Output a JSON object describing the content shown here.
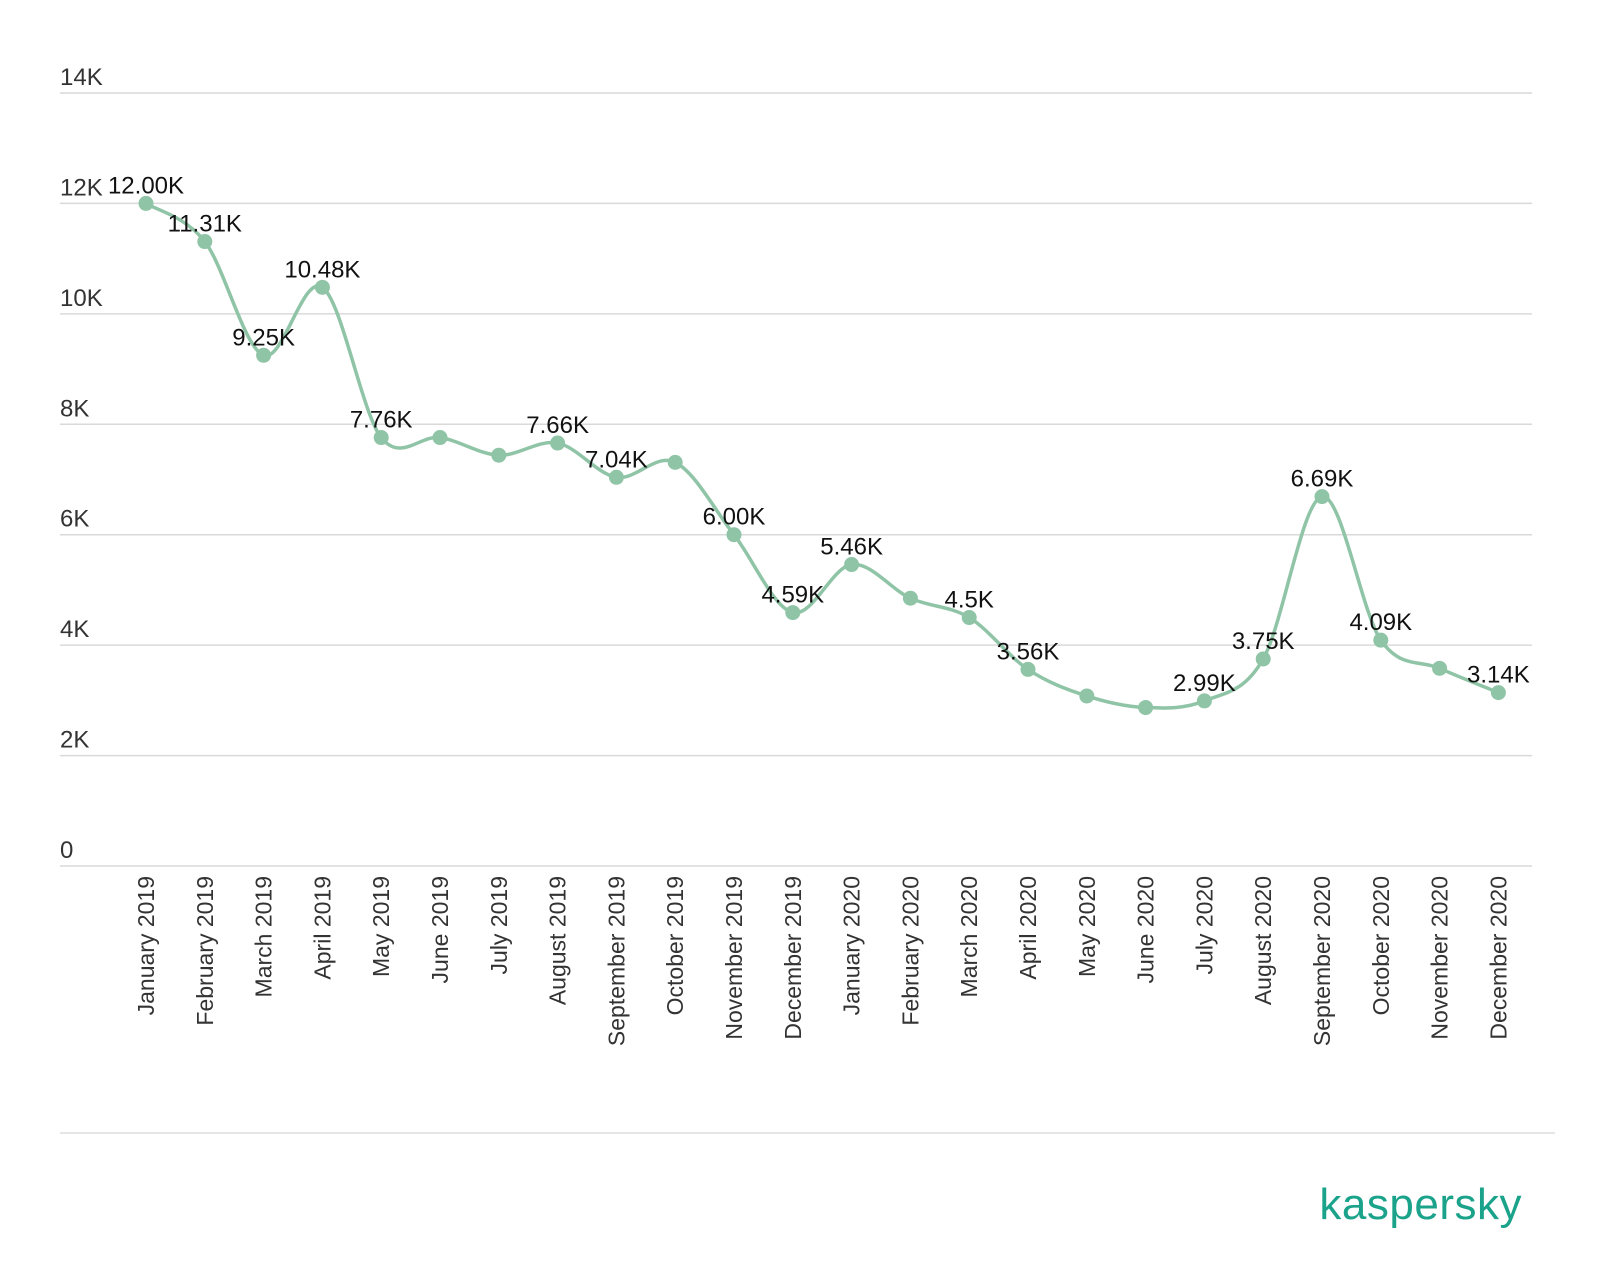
{
  "brand": {
    "logo_text": "kaspersky",
    "color": "#1aa38a"
  },
  "colors": {
    "series": "#8fc4a6",
    "grid": "#d9d9d9",
    "text": "#333333"
  },
  "chart_data": {
    "type": "line",
    "title": "",
    "xlabel": "",
    "ylabel": "",
    "ylim": [
      0,
      14000
    ],
    "yticks": [
      0,
      2000,
      4000,
      6000,
      8000,
      10000,
      12000,
      14000
    ],
    "ytick_labels": [
      "0",
      "2K",
      "4K",
      "6K",
      "8K",
      "10K",
      "12K",
      "14K"
    ],
    "grid": true,
    "smooth": true,
    "categories": [
      "January 2019",
      "February 2019",
      "March 2019",
      "April 2019",
      "May 2019",
      "June 2019",
      "July 2019",
      "August 2019",
      "September 2019",
      "October 2019",
      "November 2019",
      "December 2019",
      "January 2020",
      "February 2020",
      "March 2020",
      "April 2020",
      "May 2020",
      "June 2020",
      "July 2020",
      "August 2020",
      "September 2020",
      "October 2020",
      "November 2020",
      "December 2020"
    ],
    "series": [
      {
        "values": [
          12000,
          11310,
          9250,
          10480,
          7760,
          7760,
          7440,
          7660,
          7040,
          7310,
          6000,
          4590,
          5460,
          4850,
          4500,
          3560,
          3080,
          2870,
          2990,
          3750,
          6690,
          4090,
          3580,
          3140
        ],
        "data_labels": [
          "12.00K",
          "11.31K",
          "9.25K",
          "10.48K",
          "7.76K",
          "",
          "",
          "7.66K",
          "7.04K",
          "",
          "6.00K",
          "4.59K",
          "5.46K",
          "",
          "4.5K",
          "3.56K",
          "",
          "",
          "2.99K",
          "3.75K",
          "6.69K",
          "4.09K",
          "",
          "3.14K"
        ]
      }
    ]
  }
}
